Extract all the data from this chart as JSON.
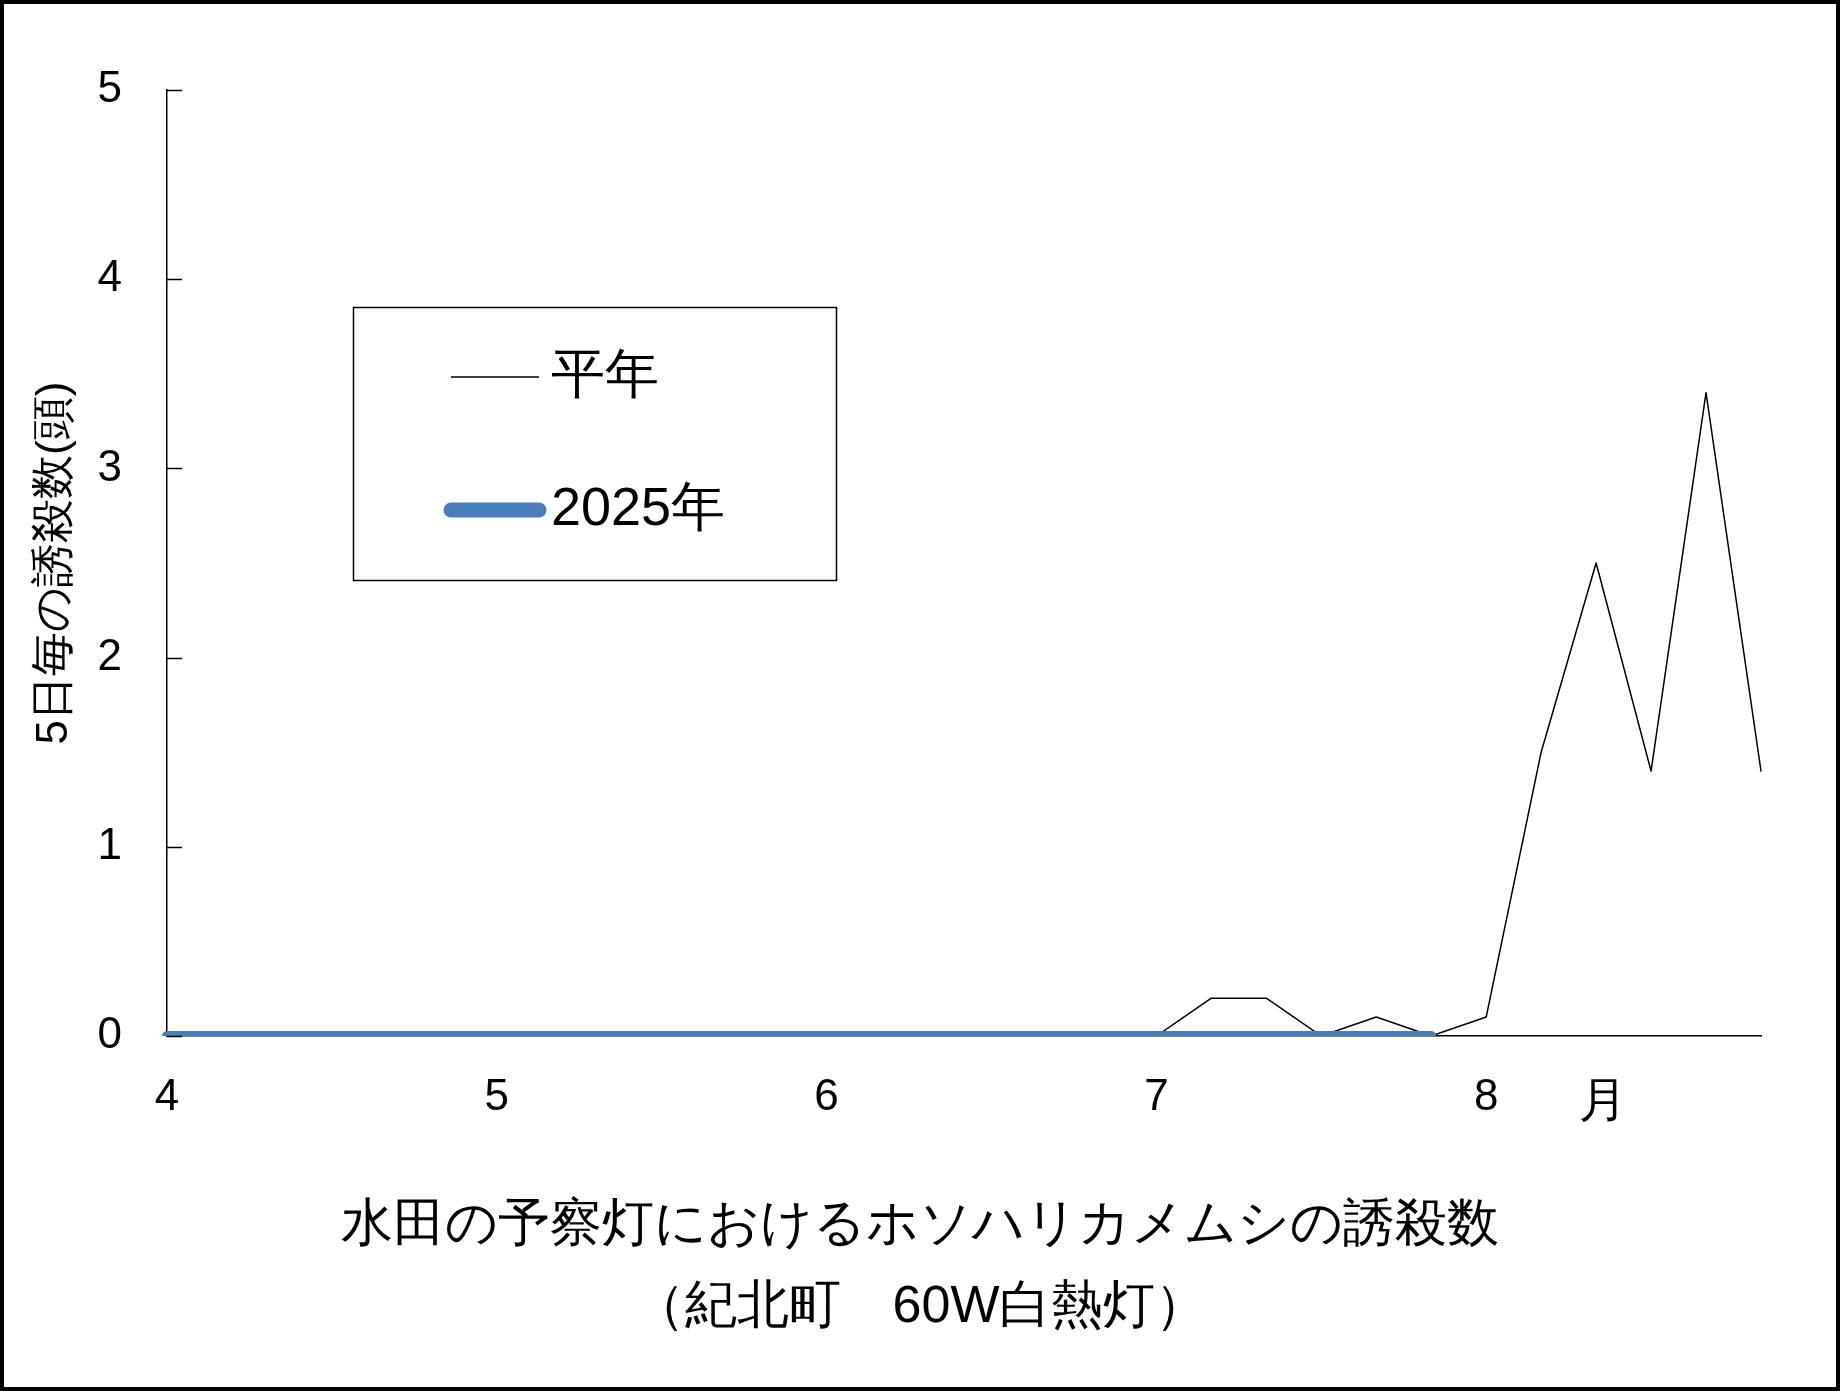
{
  "chart_data": {
    "type": "line",
    "title": "水田の予察灯におけるホソハリカメムシの誘殺数",
    "subtitle": "（紀北町　60W白熱灯）",
    "xlabel": "月",
    "ylabel": "5日毎の誘殺数(頭)",
    "categories": [
      "4",
      null,
      null,
      null,
      null,
      null,
      "5",
      null,
      null,
      null,
      null,
      null,
      "6",
      null,
      null,
      null,
      null,
      null,
      "7",
      null,
      null,
      null,
      null,
      null,
      "8",
      null,
      null,
      null,
      null,
      null
    ],
    "series": [
      {
        "name": "平年",
        "color": "#000000",
        "values": [
          null,
          null,
          null,
          null,
          null,
          null,
          null,
          null,
          null,
          null,
          null,
          null,
          null,
          null,
          null,
          null,
          null,
          null,
          0,
          0.2,
          0.2,
          0,
          0.1,
          0,
          0.1,
          1.5,
          2.5,
          1.4,
          3.4,
          1.4
        ]
      },
      {
        "name": "2025年",
        "color": "#4a7ebb",
        "values": [
          0,
          0,
          0,
          0,
          0,
          0,
          0,
          0,
          0,
          0,
          0,
          0,
          0,
          0,
          0,
          0,
          0,
          0,
          0,
          0,
          0,
          0,
          0,
          0,
          null,
          null,
          null,
          null,
          null,
          null
        ]
      }
    ],
    "ylim": [
      0,
      5
    ],
    "yticks": [
      0,
      1,
      2,
      3,
      4,
      5
    ],
    "legend": "top left",
    "marker": "none"
  }
}
